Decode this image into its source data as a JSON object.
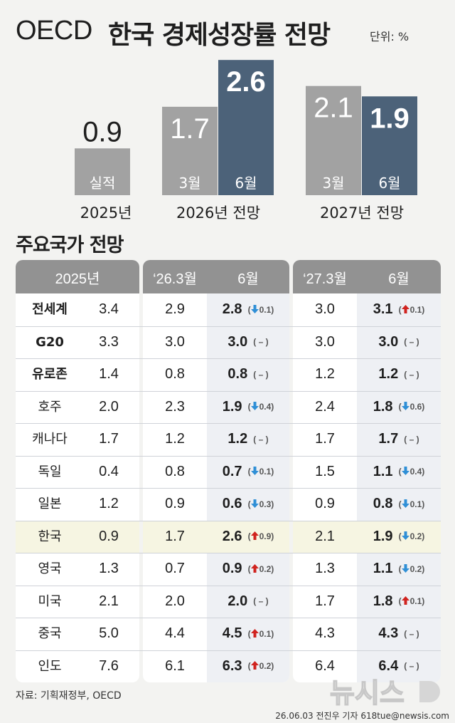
{
  "title": {
    "en": "OECD",
    "ko": "한국 경제성장률 전망",
    "unit": "단위: %"
  },
  "section_title": "주요국가 전망",
  "source": "자료: 기획재정부, OECD",
  "credit": "26.06.03 전진우 기자 618tue@newsis.com",
  "watermark": "뉴시스",
  "colors": {
    "bar_gray": "#a2a2a2",
    "bar_blue": "#4c6279",
    "header_gray": "#929292",
    "highlight": "#eef0f4",
    "korea_row": "#f6f5e2",
    "up": "#d0231f",
    "down": "#2f8fd6"
  },
  "chart_data": {
    "type": "bar",
    "unit": "%",
    "groups": [
      {
        "label": "2025년",
        "bars": [
          {
            "value": 0.9,
            "label": "0.9",
            "inside": "실적",
            "color": "#a2a2a2",
            "bold": false
          }
        ]
      },
      {
        "label": "2026년 전망",
        "bars": [
          {
            "value": 1.7,
            "label": "1.7",
            "inside": "3월",
            "color": "#a2a2a2",
            "bold": false
          },
          {
            "value": 2.6,
            "label": "2.6",
            "inside": "6월",
            "color": "#4c6279",
            "bold": true
          }
        ]
      },
      {
        "label": "2027년 전망",
        "bars": [
          {
            "value": 2.1,
            "label": "2.1",
            "inside": "3월",
            "color": "#a2a2a2",
            "bold": false
          },
          {
            "value": 1.9,
            "label": "1.9",
            "inside": "6월",
            "color": "#4c6279",
            "bold": true
          }
        ]
      }
    ]
  },
  "table": {
    "headers": {
      "h2025": "2025년",
      "h26_3": "‘26.3월",
      "h26_6": "6월",
      "h27_3": "‘27.3월",
      "h27_6": "6월"
    },
    "rows": [
      {
        "country": "전세계",
        "agg": true,
        "y2025": "3.4",
        "m26_3": "2.9",
        "m26_6": "2.8",
        "d26": "0.1",
        "d26_dir": "down",
        "m27_3": "3.0",
        "m27_6": "3.1",
        "d27": "0.1",
        "d27_dir": "up"
      },
      {
        "country": "G20",
        "agg": true,
        "y2025": "3.3",
        "m26_3": "3.0",
        "m26_6": "3.0",
        "d26": "–",
        "d26_dir": "none",
        "m27_3": "3.0",
        "m27_6": "3.0",
        "d27": "–",
        "d27_dir": "none"
      },
      {
        "country": "유로존",
        "agg": true,
        "y2025": "1.4",
        "m26_3": "0.8",
        "m26_6": "0.8",
        "d26": "–",
        "d26_dir": "none",
        "m27_3": "1.2",
        "m27_6": "1.2",
        "d27": "–",
        "d27_dir": "none"
      },
      {
        "country": "호주",
        "agg": false,
        "y2025": "2.0",
        "m26_3": "2.3",
        "m26_6": "1.9",
        "d26": "0.4",
        "d26_dir": "down",
        "m27_3": "2.4",
        "m27_6": "1.8",
        "d27": "0.6",
        "d27_dir": "down"
      },
      {
        "country": "캐나다",
        "agg": false,
        "y2025": "1.7",
        "m26_3": "1.2",
        "m26_6": "1.2",
        "d26": "–",
        "d26_dir": "none",
        "m27_3": "1.7",
        "m27_6": "1.7",
        "d27": "–",
        "d27_dir": "none"
      },
      {
        "country": "독일",
        "agg": false,
        "y2025": "0.4",
        "m26_3": "0.8",
        "m26_6": "0.7",
        "d26": "0.1",
        "d26_dir": "down",
        "m27_3": "1.5",
        "m27_6": "1.1",
        "d27": "0.4",
        "d27_dir": "down"
      },
      {
        "country": "일본",
        "agg": false,
        "y2025": "1.2",
        "m26_3": "0.9",
        "m26_6": "0.6",
        "d26": "0.3",
        "d26_dir": "down",
        "m27_3": "0.9",
        "m27_6": "0.8",
        "d27": "0.1",
        "d27_dir": "down"
      },
      {
        "country": "한국",
        "agg": false,
        "korea": true,
        "y2025": "0.9",
        "m26_3": "1.7",
        "m26_6": "2.6",
        "d26": "0.9",
        "d26_dir": "up",
        "m27_3": "2.1",
        "m27_6": "1.9",
        "d27": "0.2",
        "d27_dir": "down"
      },
      {
        "country": "영국",
        "agg": false,
        "y2025": "1.3",
        "m26_3": "0.7",
        "m26_6": "0.9",
        "d26": "0.2",
        "d26_dir": "up",
        "m27_3": "1.3",
        "m27_6": "1.1",
        "d27": "0.2",
        "d27_dir": "down"
      },
      {
        "country": "미국",
        "agg": false,
        "y2025": "2.1",
        "m26_3": "2.0",
        "m26_6": "2.0",
        "d26": "–",
        "d26_dir": "none",
        "m27_3": "1.7",
        "m27_6": "1.8",
        "d27": "0.1",
        "d27_dir": "up"
      },
      {
        "country": "중국",
        "agg": false,
        "y2025": "5.0",
        "m26_3": "4.4",
        "m26_6": "4.5",
        "d26": "0.1",
        "d26_dir": "up",
        "m27_3": "4.3",
        "m27_6": "4.3",
        "d27": "–",
        "d27_dir": "none"
      },
      {
        "country": "인도",
        "agg": false,
        "y2025": "7.6",
        "m26_3": "6.1",
        "m26_6": "6.3",
        "d26": "0.2",
        "d26_dir": "up",
        "m27_3": "6.4",
        "m27_6": "6.4",
        "d27": "–",
        "d27_dir": "none"
      }
    ]
  }
}
